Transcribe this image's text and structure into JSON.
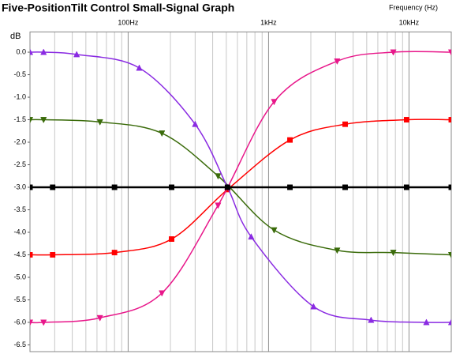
{
  "chart_data": {
    "type": "line",
    "title": "Five-PositionTilt Control Small-Signal Graph",
    "xlabel": "Frequency (Hz)",
    "ylabel": "dB",
    "xscale": "log",
    "xlim": [
      20,
      20000
    ],
    "ylim": [
      -6.65,
      0.45
    ],
    "xticks": [
      {
        "value": 100,
        "label": "100Hz"
      },
      {
        "value": 1000,
        "label": "1kHz"
      },
      {
        "value": 10000,
        "label": "10kHz"
      }
    ],
    "xminor": [
      20,
      30,
      40,
      50,
      60,
      70,
      80,
      90,
      200,
      300,
      400,
      500,
      600,
      700,
      800,
      900,
      2000,
      3000,
      4000,
      5000,
      6000,
      7000,
      8000,
      9000,
      20000
    ],
    "yticks": [
      {
        "value": 0,
        "label": "0.0"
      },
      -0.5,
      {
        "value": -1,
        "label": "-1.0"
      },
      -1.5,
      {
        "value": -2,
        "label": "-2.0"
      },
      -2.5,
      {
        "value": -3,
        "label": "-3.0"
      },
      -3.5,
      {
        "value": -4,
        "label": "-4.0"
      },
      -4.5,
      {
        "value": -5,
        "label": "-5.0"
      },
      -5.5,
      {
        "value": -6,
        "label": "-6.0"
      },
      -6.5
    ],
    "grid": true,
    "series": [
      {
        "color": "#ff0000",
        "marker": "square",
        "width": 1.5,
        "x": [
          20,
          29,
          80,
          204,
          510,
          1420,
          3510,
          9620,
          20000
        ],
        "values": [
          -4.5,
          -4.5,
          -4.45,
          -4.15,
          -3.05,
          -1.95,
          -1.6,
          -1.5,
          -1.5
        ]
      },
      {
        "color": "#3a6b0a",
        "marker": "triangle-down",
        "width": 1.5,
        "x": [
          20,
          25,
          63,
          174,
          437,
          1095,
          3080,
          7730,
          20000
        ],
        "values": [
          -1.5,
          -1.5,
          -1.55,
          -1.8,
          -2.75,
          -3.95,
          -4.4,
          -4.45,
          -4.5
        ]
      },
      {
        "color": "#e8178a",
        "marker": "triangle-down",
        "width": 1.5,
        "x": [
          20,
          25,
          63,
          174,
          437,
          1095,
          3080,
          7730,
          20000
        ],
        "values": [
          -6.0,
          -6.0,
          -5.9,
          -5.35,
          -3.4,
          -1.1,
          -0.2,
          0.0,
          0.0
        ]
      },
      {
        "color": "#8a2be2",
        "marker": "triangle-up",
        "width": 1.5,
        "x": [
          20,
          25,
          43,
          120,
          300,
          510,
          752,
          2090,
          5370,
          13300,
          20000
        ],
        "values": [
          0.0,
          0.0,
          -0.05,
          -0.35,
          -1.6,
          -3.0,
          -4.1,
          -5.65,
          -5.95,
          -6.0,
          -6.0
        ]
      },
      {
        "color": "#000000",
        "marker": "square",
        "width": 2.5,
        "x": [
          20,
          29,
          80,
          204,
          510,
          1420,
          3510,
          9620,
          20000
        ],
        "values": [
          -3,
          -3,
          -3,
          -3,
          -3,
          -3,
          -3,
          -3,
          -3
        ]
      }
    ]
  }
}
